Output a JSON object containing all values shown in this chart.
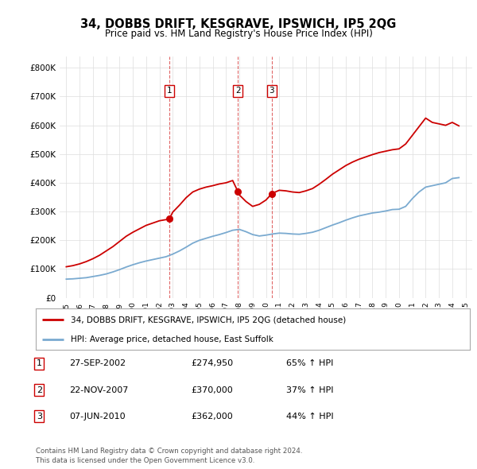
{
  "title": "34, DOBBS DRIFT, KESGRAVE, IPSWICH, IP5 2QG",
  "subtitle": "Price paid vs. HM Land Registry's House Price Index (HPI)",
  "ylabel_ticks": [
    "£0",
    "£100K",
    "£200K",
    "£300K",
    "£400K",
    "£500K",
    "£600K",
    "£700K",
    "£800K"
  ],
  "ytick_values": [
    0,
    100000,
    200000,
    300000,
    400000,
    500000,
    600000,
    700000,
    800000
  ],
  "ylim": [
    0,
    840000
  ],
  "xlim_start": 1994.5,
  "xlim_end": 2025.5,
  "sale_color": "#cc0000",
  "hpi_color": "#7aaad0",
  "grid_color": "#dddddd",
  "sale_dates": [
    2002.74,
    2007.89,
    2010.44
  ],
  "sale_prices": [
    274950,
    370000,
    362000
  ],
  "sale_labels": [
    "1",
    "2",
    "3"
  ],
  "legend_label_red": "34, DOBBS DRIFT, KESGRAVE, IPSWICH, IP5 2QG (detached house)",
  "legend_label_blue": "HPI: Average price, detached house, East Suffolk",
  "table_rows": [
    {
      "num": "1",
      "date": "27-SEP-2002",
      "price": "£274,950",
      "change": "65% ↑ HPI"
    },
    {
      "num": "2",
      "date": "22-NOV-2007",
      "price": "£370,000",
      "change": "37% ↑ HPI"
    },
    {
      "num": "3",
      "date": "07-JUN-2010",
      "price": "£362,000",
      "change": "44% ↑ HPI"
    }
  ],
  "footer": "Contains HM Land Registry data © Crown copyright and database right 2024.\nThis data is licensed under the Open Government Licence v3.0.",
  "background_color": "#ffffff"
}
